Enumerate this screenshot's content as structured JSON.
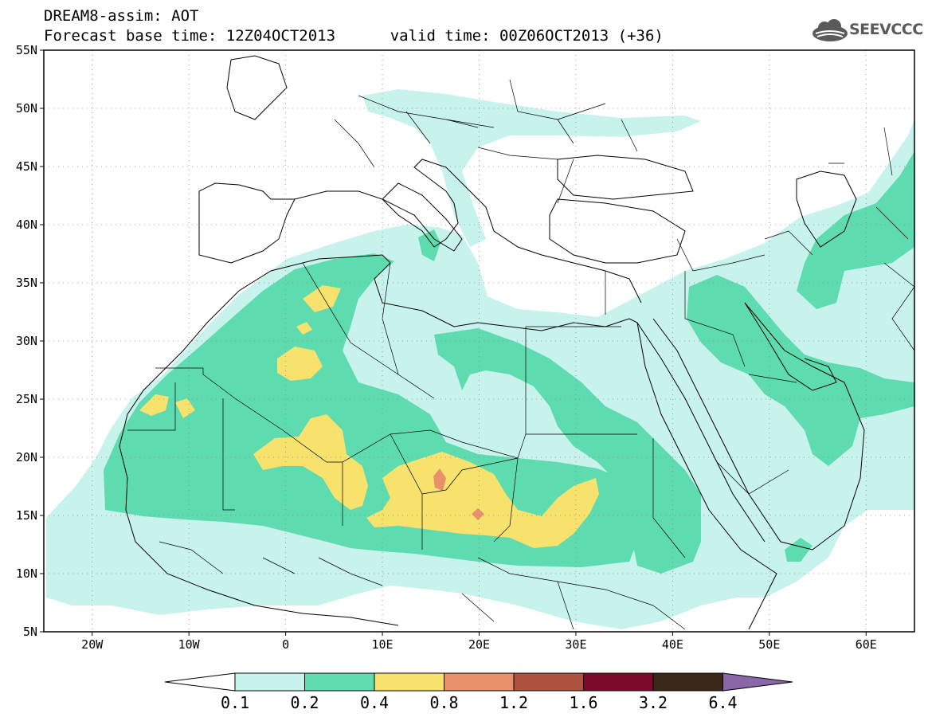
{
  "header": {
    "title": "DREAM8-assim: AOT",
    "base_label": "Forecast base time: 12Z04OCT2013",
    "valid_label": "valid time: 00Z06OCT2013 (+36)"
  },
  "logo": {
    "text": "SEEVCCC",
    "icon": "cloud-icon"
  },
  "map": {
    "lat_labels": [
      "55N",
      "50N",
      "45N",
      "40N",
      "35N",
      "30N",
      "25N",
      "20N",
      "15N",
      "10N",
      "5N"
    ],
    "lon_labels": [
      "20W",
      "10W",
      "0",
      "10E",
      "20E",
      "30E",
      "40E",
      "50E",
      "60E"
    ]
  },
  "colorbar": {
    "levels": [
      "0.1",
      "0.2",
      "0.4",
      "0.8",
      "1.2",
      "1.6",
      "3.2",
      "6.4"
    ],
    "colors": [
      "#ffffff",
      "#c8f3ec",
      "#5edcb0",
      "#f7e26e",
      "#e8906a",
      "#b05240",
      "#7d0a2a",
      "#3c2818",
      "#8a68a8"
    ]
  }
}
